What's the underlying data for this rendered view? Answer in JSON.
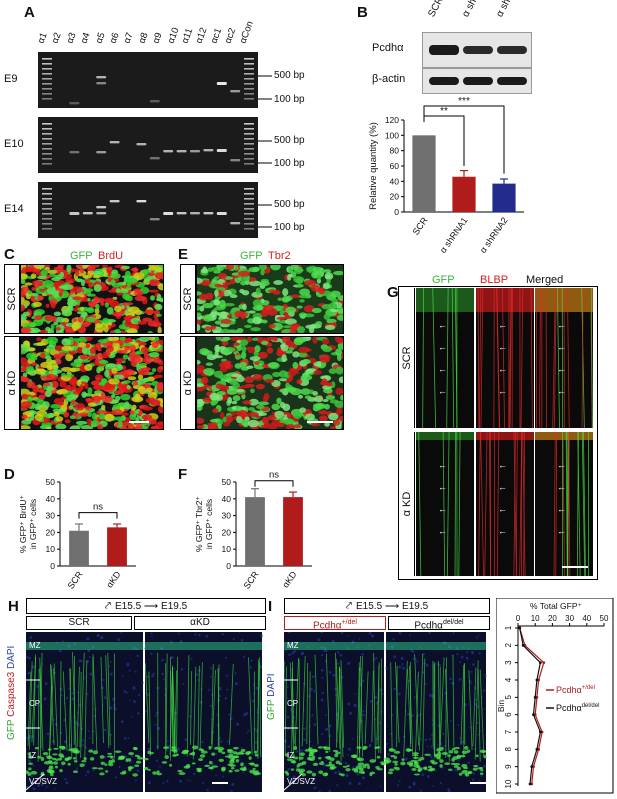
{
  "panels": {
    "A": {
      "label": "A",
      "lanes": [
        "α1",
        "α2",
        "α3",
        "α4",
        "α5",
        "α6",
        "α7",
        "α8",
        "α9",
        "α10",
        "α11",
        "α12",
        "αc1",
        "αc2",
        "αCon"
      ],
      "rows": [
        "E9",
        "E10",
        "E14"
      ],
      "markers": [
        "500 bp",
        "100 bp"
      ]
    },
    "B": {
      "label": "B",
      "blot_cols": [
        "SCR",
        "α shRNA1",
        "α shRNA2"
      ],
      "blot_rows": [
        "Pcdhα",
        "β-actin"
      ],
      "sig1": "**",
      "sig2": "***"
    },
    "C": {
      "label": "C",
      "stain1": "GFP",
      "stain2": "BrdU",
      "rows": [
        "SCR",
        "α KD"
      ]
    },
    "D": {
      "label": "D",
      "ns": "ns",
      "ylabel_line1": "% GFP⁺ BrdU⁺",
      "ylabel_line2": "in GFP⁺ cells"
    },
    "E": {
      "label": "E",
      "stain1": "GFP",
      "stain2": "Tbr2",
      "rows": [
        "SCR",
        "α KD"
      ]
    },
    "F": {
      "label": "F",
      "ns": "ns",
      "ylabel_line1": "% GFP⁺ Tbr2⁺",
      "ylabel_line2": "in GFP⁺ cells"
    },
    "G": {
      "label": "G",
      "cols": [
        "GFP",
        "BLBP",
        "Merged"
      ],
      "rows": [
        "SCR",
        "α KD"
      ]
    },
    "H": {
      "label": "H",
      "timeline": "E15.5 ⟶ E19.5",
      "cols": [
        "SCR",
        "αKD"
      ],
      "zones": [
        "MZ",
        "CP",
        "IZ",
        "VZ/SVZ"
      ],
      "vstain_green": "GFP",
      "vstain_red": "Caspase3",
      "vstain_blue": "DAPI"
    },
    "I": {
      "label": "I",
      "timeline": "E15.5 ⟶ E19.5",
      "col1": "Pcdhα",
      "col1_sup": "+/del",
      "col2": "Pcdhα",
      "col2_sup": "del/del",
      "zones": [
        "MZ",
        "CP",
        "IZ",
        "VZ/SVZ"
      ],
      "vstain_green": "GFP",
      "vstain_blue": "DAPI",
      "legend1": "Pcdhα",
      "legend1_sup": "+/del",
      "legend2": "Pcdhα",
      "legend2_sup": "del/del"
    }
  },
  "colors": {
    "gray": "#707070",
    "red": "#b01c1c",
    "blue": "#232c8c",
    "green": "#3fdc3f",
    "magenta": "#e02020"
  },
  "chart_data": [
    {
      "id": "B",
      "type": "bar",
      "categories": [
        "SCR",
        "α shRNA1",
        "α shRNA2"
      ],
      "values": [
        100,
        46,
        37
      ],
      "errors": [
        0,
        8,
        6
      ],
      "ylabel": "Relative quantity (%)",
      "ylim": [
        0,
        120
      ],
      "yticks": [
        0,
        20,
        40,
        60,
        80,
        100,
        120
      ]
    },
    {
      "id": "D",
      "type": "bar",
      "categories": [
        "SCR",
        "αKD"
      ],
      "values": [
        21,
        23
      ],
      "errors": [
        4,
        2
      ],
      "ylim": [
        0,
        50
      ],
      "yticks": [
        0,
        10,
        20,
        30,
        40,
        50
      ]
    },
    {
      "id": "F",
      "type": "bar",
      "categories": [
        "SCR",
        "αKD"
      ],
      "values": [
        41,
        41
      ],
      "errors": [
        5,
        3
      ],
      "ylim": [
        0,
        50
      ],
      "yticks": [
        0,
        10,
        20,
        30,
        40,
        50
      ]
    },
    {
      "id": "I",
      "type": "line",
      "xlabel": "% Total GFP⁺",
      "ylabel": "Bin",
      "xlim": [
        0,
        50
      ],
      "xticks": [
        0,
        10,
        20,
        30,
        40,
        50
      ],
      "bins": [
        1,
        2,
        3,
        4,
        5,
        6,
        7,
        8,
        9,
        10
      ],
      "series": [
        {
          "legend": "+/del",
          "values": [
            1,
            4,
            15,
            12,
            11,
            10,
            14,
            12,
            9,
            8
          ]
        },
        {
          "legend": "del/del",
          "values": [
            1,
            3,
            13,
            11,
            10,
            9,
            13,
            11,
            8,
            7
          ]
        }
      ]
    }
  ]
}
